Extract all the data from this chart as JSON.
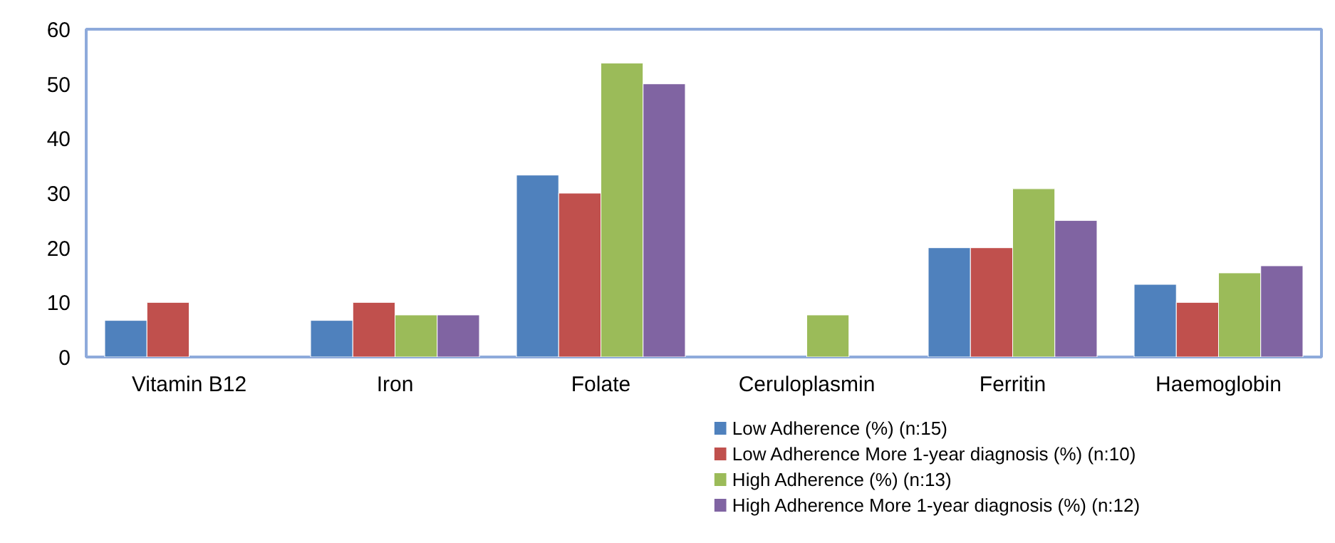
{
  "chart_data": {
    "type": "bar",
    "categories": [
      "Vitamin B12",
      "Iron",
      "Folate",
      "Ceruloplasmin",
      "Ferritin",
      "Haemoglobin"
    ],
    "series": [
      {
        "name": "Low Adherence (%) (n:15)",
        "color": "#4f81bd",
        "values": [
          6.7,
          6.7,
          33.3,
          null,
          20,
          13.3
        ]
      },
      {
        "name": "Low Adherence More 1-year diagnosis (%) (n:10)",
        "color": "#c0504d",
        "values": [
          10,
          10,
          30,
          null,
          20,
          10
        ]
      },
      {
        "name": "High Adherence (%) (n:13)",
        "color": "#9bbb59",
        "values": [
          null,
          7.7,
          53.8,
          7.7,
          30.8,
          15.4
        ]
      },
      {
        "name": "High Adherence More 1-year diagnosis (%) (n:12)",
        "color": "#8064a2",
        "values": [
          null,
          7.7,
          50,
          null,
          25,
          16.7
        ]
      }
    ],
    "ylim": [
      0,
      60
    ],
    "yticks": [
      0,
      10,
      20,
      30,
      40,
      50,
      60
    ],
    "grid": false,
    "legend": "bottom right"
  }
}
